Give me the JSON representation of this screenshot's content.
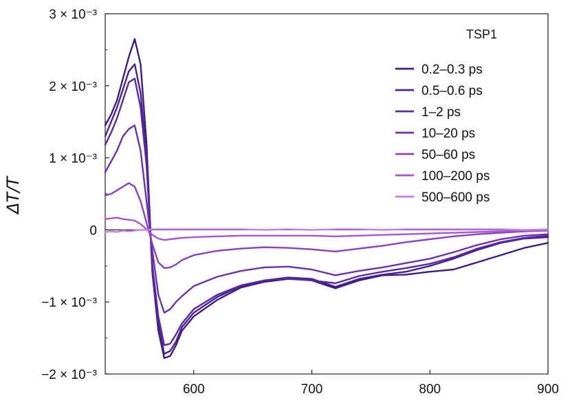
{
  "chart_data": {
    "type": "line",
    "title": "",
    "xlabel": "",
    "ylabel": "ΔT/T",
    "legend_title": "TSP1",
    "legend_position": "top-right",
    "xlim": [
      525,
      900
    ],
    "ylim": [
      -0.002,
      0.003
    ],
    "x_ticks": [
      600,
      700,
      800,
      900
    ],
    "x_tick_labels": [
      "600",
      "700",
      "800",
      "900"
    ],
    "y_ticks": [
      -0.002,
      -0.001,
      0,
      0.001,
      0.002,
      0.003
    ],
    "y_tick_labels": [
      "−2 × 10⁻³",
      "−1 × 10⁻³",
      "0",
      "1 × 10⁻³",
      "2 × 10⁻³",
      "3 × 10⁻³"
    ],
    "zero_line": true,
    "grid": false,
    "x": [
      525,
      530,
      535,
      540,
      545,
      550,
      555,
      560,
      565,
      570,
      575,
      580,
      585,
      590,
      600,
      620,
      640,
      660,
      680,
      700,
      720,
      740,
      760,
      780,
      800,
      820,
      840,
      860,
      880,
      900
    ],
    "series": [
      {
        "name": "0.2–0.3 ps",
        "color": "#3f1a84",
        "values": [
          0.00145,
          0.0016,
          0.0018,
          0.0021,
          0.0024,
          0.00265,
          0.0023,
          0.0012,
          -0.0006,
          -0.0014,
          -0.00178,
          -0.00175,
          -0.0016,
          -0.0014,
          -0.0012,
          -0.00097,
          -0.0008,
          -0.00072,
          -0.00068,
          -0.0007,
          -0.00081,
          -0.0007,
          -0.00063,
          -0.00062,
          -0.00058,
          -0.00055,
          -0.00045,
          -0.00035,
          -0.00025,
          -0.00018
        ]
      },
      {
        "name": "0.5–0.6 ps",
        "color": "#4a1f95",
        "values": [
          0.0013,
          0.0015,
          0.0017,
          0.00195,
          0.0022,
          0.0023,
          0.0019,
          0.001,
          -0.0006,
          -0.0013,
          -0.00172,
          -0.00168,
          -0.00155,
          -0.00135,
          -0.00115,
          -0.00093,
          -0.00078,
          -0.0007,
          -0.00066,
          -0.00068,
          -0.00079,
          -0.00068,
          -0.00062,
          -0.00058,
          -0.0005,
          -0.0004,
          -0.00028,
          -0.00018,
          -0.00012,
          -0.0001
        ]
      },
      {
        "name": "1–2 ps",
        "color": "#5a27a7",
        "values": [
          0.00118,
          0.00135,
          0.00155,
          0.0018,
          0.00205,
          0.0021,
          0.0017,
          0.0009,
          -0.0005,
          -0.0012,
          -0.0016,
          -0.00158,
          -0.00145,
          -0.0013,
          -0.0011,
          -0.0009,
          -0.00077,
          -0.0007,
          -0.00067,
          -0.0007,
          -0.00074,
          -0.00064,
          -0.00058,
          -0.00053,
          -0.00047,
          -0.00038,
          -0.00026,
          -0.00017,
          -0.00011,
          -8e-05
        ]
      },
      {
        "name": "10–20 ps",
        "color": "#6b2eb6",
        "values": [
          0.0008,
          0.00095,
          0.0011,
          0.0013,
          0.0014,
          0.00145,
          0.0011,
          0.0004,
          -0.0003,
          -0.0009,
          -0.00115,
          -0.0011,
          -0.001,
          -0.00092,
          -0.00078,
          -0.00065,
          -0.00057,
          -0.00052,
          -0.00051,
          -0.00055,
          -0.00063,
          -0.00057,
          -0.00052,
          -0.00046,
          -0.0004,
          -0.00031,
          -0.00021,
          -0.00013,
          -8e-05,
          -6e-05
        ]
      },
      {
        "name": "50–60 ps",
        "color": "#8b3fc4",
        "values": [
          0.00048,
          0.0005,
          0.00055,
          0.0006,
          0.00065,
          0.0006,
          0.0004,
          0.0001,
          -0.0002,
          -0.00045,
          -0.00053,
          -0.00052,
          -0.00048,
          -0.00042,
          -0.00035,
          -0.00029,
          -0.00026,
          -0.00024,
          -0.00025,
          -0.00027,
          -0.0003,
          -0.00026,
          -0.00022,
          -0.00017,
          -0.00013,
          -9e-05,
          -6e-05,
          -4e-05,
          -2e-05,
          -1e-05
        ]
      },
      {
        "name": "100–200 ps",
        "color": "#a654d4",
        "values": [
          0.00015,
          0.00016,
          0.00017,
          0.00015,
          0.00014,
          0.00013,
          8e-05,
          1e-05,
          -7e-05,
          -0.00012,
          -0.00014,
          -0.00013,
          -0.00012,
          -0.00011,
          -0.0001,
          -9e-05,
          -8e-05,
          -8e-05,
          -8e-05,
          -8e-05,
          -9e-05,
          -8e-05,
          -7e-05,
          -6e-05,
          -5e-05,
          -4e-05,
          -3e-05,
          -2e-05,
          -1e-05,
          -1e-05
        ]
      },
      {
        "name": "500–600 ps",
        "color": "#c77ee6",
        "values": [
          -3e-05,
          -2e-05,
          -3e-05,
          -1e-05,
          -2e-05,
          -1e-05,
          0,
          0,
          1e-05,
          1e-05,
          1e-05,
          1e-05,
          1e-05,
          1e-05,
          1e-05,
          1e-05,
          1e-05,
          0,
          1e-05,
          0,
          1e-05,
          1e-05,
          0,
          1e-05,
          1e-05,
          1e-05,
          1e-05,
          1e-05,
          0,
          1e-05
        ]
      }
    ]
  }
}
